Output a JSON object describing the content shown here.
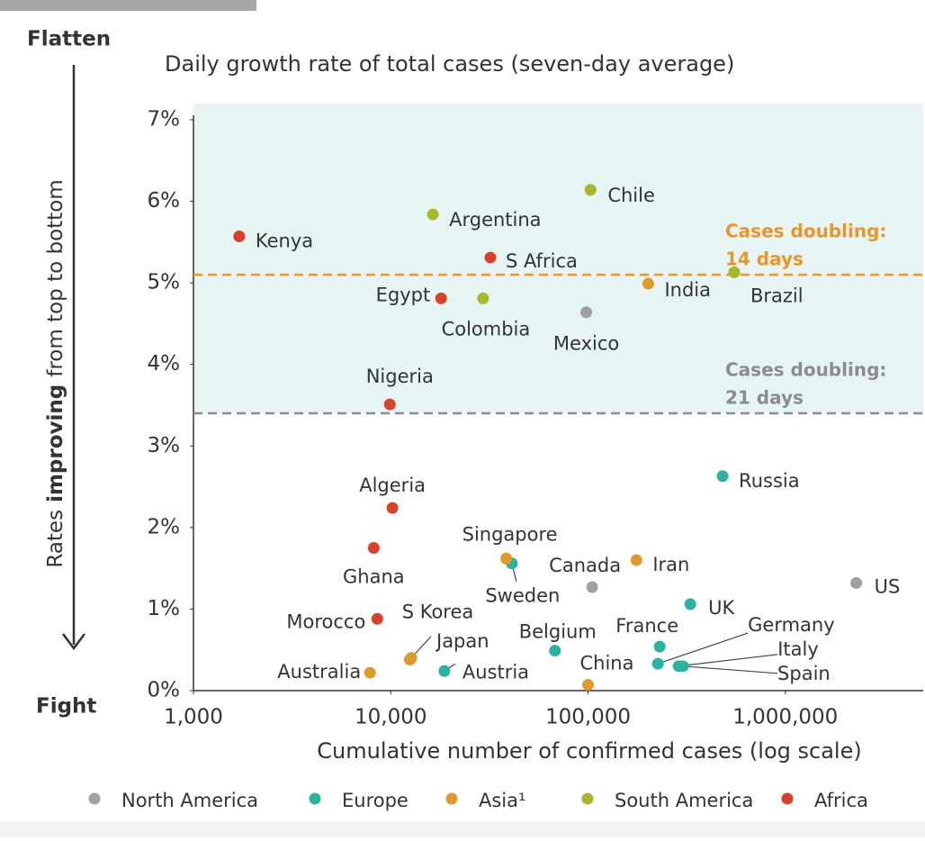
{
  "chart_data": {
    "type": "scatter",
    "title": "Daily growth rate of total cases (seven-day average)",
    "x_label": "Cumulative number of confirmed cases (log scale)",
    "y_label": [
      "Rates",
      "improving",
      "from top to bottom"
    ],
    "top_label": "Flatten",
    "bottom_label": "Fight",
    "xscale": "log",
    "xlim": [
      1000,
      5000000
    ],
    "xticks": [
      {
        "value": 1000,
        "label": "1,000"
      },
      {
        "value": 10000,
        "label": "10,000"
      },
      {
        "value": 100000,
        "label": "100,000"
      },
      {
        "value": 1000000,
        "label": "1,000,000"
      }
    ],
    "ylim": [
      0,
      7
    ],
    "yticks": [
      {
        "value": 0,
        "label": "0%"
      },
      {
        "value": 1,
        "label": "1%"
      },
      {
        "value": 2,
        "label": "2%"
      },
      {
        "value": 3,
        "label": "3%"
      },
      {
        "value": 4,
        "label": "4%"
      },
      {
        "value": 5,
        "label": "5%"
      },
      {
        "value": 6,
        "label": "6%"
      },
      {
        "value": 7,
        "label": "7%"
      }
    ],
    "reference_lines": [
      {
        "value": 5.1,
        "label": [
          "Cases doubling:",
          "14 days"
        ],
        "color": "#e8962a"
      },
      {
        "value": 3.4,
        "label": [
          "Cases doubling:",
          "21 days"
        ],
        "color": "#8c8c8c"
      }
    ],
    "shade_color": "#e6f4f4",
    "series": [
      {
        "name": "North America",
        "color": "#a0a0a0",
        "labels": [
          "Mexico",
          "Canada",
          "US"
        ],
        "x": [
          98000,
          105000,
          2290000
        ],
        "values": [
          4.64,
          1.27,
          1.32
        ]
      },
      {
        "name": "Europe",
        "color": "#2bb3a0",
        "labels": [
          "Russia",
          "Sweden",
          "UK",
          "Belgium",
          "France",
          "Germany",
          "Italy",
          "Spain",
          "Austria"
        ],
        "x": [
          481000,
          41100,
          330000,
          68000,
          231000,
          226000,
          288000,
          303000,
          18700
        ],
        "values": [
          2.63,
          1.56,
          1.06,
          0.49,
          0.54,
          0.33,
          0.3,
          0.3,
          0.24
        ]
      },
      {
        "name": "Asia¹",
        "color": "#e09a2a",
        "labels": [
          "India",
          "Singapore",
          "Iran",
          "S Korea",
          "Japan",
          "Australia",
          "China"
        ],
        "x": [
          202000,
          38500,
          176000,
          12500,
          12700,
          7850,
          100000
        ],
        "values": [
          4.99,
          1.62,
          1.6,
          0.38,
          0.4,
          0.22,
          0.07
        ]
      },
      {
        "name": "South America",
        "color": "#a8b82a",
        "labels": [
          "Argentina",
          "Chile",
          "Colombia",
          "Brazil"
        ],
        "x": [
          16360,
          103000,
          29400,
          551000
        ],
        "values": [
          5.84,
          6.14,
          4.81,
          5.13
        ]
      },
      {
        "name": "Africa",
        "color": "#d9412b",
        "labels": [
          "Kenya",
          "S Africa",
          "Egypt",
          "Nigeria",
          "Algeria",
          "Ghana",
          "Morocco"
        ],
        "x": [
          1706,
          32000,
          18000,
          9900,
          10200,
          8200,
          8550
        ],
        "values": [
          5.57,
          5.31,
          4.81,
          3.51,
          2.24,
          1.75,
          0.88
        ]
      }
    ]
  }
}
